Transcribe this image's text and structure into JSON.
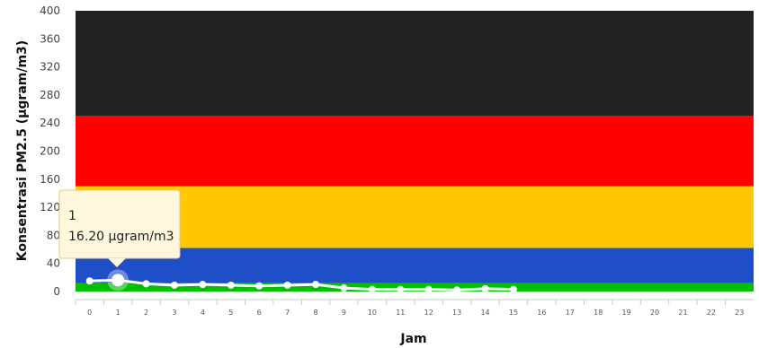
{
  "chart_data": {
    "type": "line",
    "title": "",
    "xlabel": "Jam",
    "ylabel": "Konsentrasi PM2.5 (µgram/m3)",
    "ylim": [
      0,
      400
    ],
    "y_ticks": [
      0,
      40,
      80,
      120,
      160,
      200,
      240,
      280,
      320,
      360,
      400
    ],
    "categories": [
      "0",
      "1",
      "2",
      "3",
      "4",
      "5",
      "6",
      "7",
      "8",
      "9",
      "10",
      "11",
      "12",
      "13",
      "14",
      "15",
      "16",
      "17",
      "18",
      "19",
      "20",
      "21",
      "22",
      "23"
    ],
    "series": [
      {
        "values": [
          15,
          16.2,
          11,
          9,
          10,
          9,
          8,
          9,
          10,
          5,
          3,
          3,
          3,
          2,
          4,
          3,
          null,
          null,
          null,
          null,
          null,
          null,
          null,
          null
        ]
      }
    ],
    "bands": [
      {
        "from": 0,
        "to": 12,
        "color": "#00c000"
      },
      {
        "from": 12,
        "to": 62,
        "color": "#1f4fc8"
      },
      {
        "from": 62,
        "to": 150,
        "color": "#ffc800"
      },
      {
        "from": 150,
        "to": 250,
        "color": "#ff0000"
      },
      {
        "from": 250,
        "to": 400,
        "color": "#222222"
      }
    ],
    "line_color": "#ffffff",
    "tooltip": {
      "category": "1",
      "text": "16.20 µgram/m3"
    }
  }
}
